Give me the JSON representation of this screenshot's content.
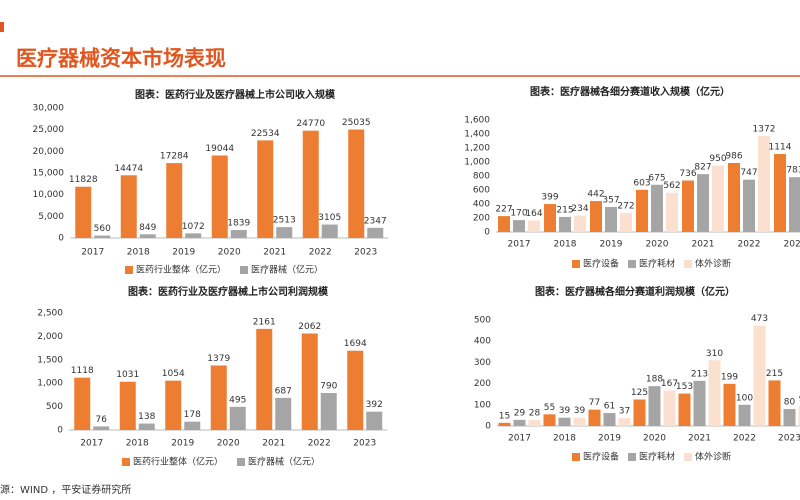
{
  "page": {
    "title": "医疗器械资本市场表现",
    "source": "源：WIND ，平安证券研究所"
  },
  "chart_data": [
    {
      "type": "bar",
      "title": "图表：医药行业及医疗器械上市公司收入规模",
      "categories": [
        "2017",
        "2018",
        "2019",
        "2020",
        "2021",
        "2022",
        "2023"
      ],
      "series": [
        {
          "name": "医药行业整体（亿元）",
          "color": "#ed7d31",
          "values": [
            11828,
            14474,
            17284,
            19044,
            22534,
            24770,
            25035
          ]
        },
        {
          "name": "医疗器械（亿元）",
          "color": "#a5a5a5",
          "values": [
            560,
            849,
            1072,
            1839,
            2513,
            3105,
            2347
          ]
        }
      ],
      "ylim": [
        0,
        30000
      ],
      "yticks": [
        0,
        {
          "value": 5000,
          "label": "5,000"
        },
        {
          "value": 10000,
          "label": "10,000"
        },
        {
          "value": 15000,
          "label": "15,000"
        },
        {
          "value": 20000,
          "label": "20,000"
        },
        {
          "value": 25000,
          "label": "25,000"
        },
        {
          "value": 30000,
          "label": "30,000"
        }
      ]
    },
    {
      "type": "bar",
      "title": "图表：医疗器械各细分赛道收入规模（亿元）",
      "categories": [
        "2017",
        "2018",
        "2019",
        "2020",
        "2021",
        "2022",
        "2023"
      ],
      "series": [
        {
          "name": "医疗设备",
          "color": "#ed7d31",
          "values": [
            227,
            399,
            442,
            603,
            736,
            986,
            1114
          ]
        },
        {
          "name": "医疗耗材",
          "color": "#a5a5a5",
          "values": [
            170,
            215,
            357,
            675,
            827,
            747,
            783
          ]
        },
        {
          "name": "体外诊断",
          "color": "#fbe0cf",
          "values": [
            164,
            234,
            272,
            562,
            950,
            1372,
            null
          ]
        }
      ],
      "ylim": [
        0,
        1600
      ],
      "yticks": [
        0,
        200,
        400,
        600,
        800,
        {
          "value": 1000,
          "label": "1,000"
        },
        {
          "value": 1200,
          "label": "1,200"
        },
        {
          "value": 1400,
          "label": "1,400"
        },
        {
          "value": 1600,
          "label": "1,600"
        }
      ]
    },
    {
      "type": "bar",
      "title": "图表：医药行业及医疗器械上市公司利润规模",
      "categories": [
        "2017",
        "2018",
        "2019",
        "2020",
        "2021",
        "2022",
        "2023"
      ],
      "series": [
        {
          "name": "医药行业整体（亿元）",
          "color": "#ed7d31",
          "values": [
            1118,
            1031,
            1054,
            1379,
            2161,
            2062,
            1694
          ]
        },
        {
          "name": "医疗器械（亿元）",
          "color": "#a5a5a5",
          "values": [
            76,
            138,
            178,
            495,
            687,
            790,
            392
          ]
        }
      ],
      "ylim": [
        0,
        2500
      ],
      "yticks": [
        0,
        500,
        {
          "value": 1000,
          "label": "1,000"
        },
        {
          "value": 1500,
          "label": "1,500"
        },
        {
          "value": 2000,
          "label": "2,000"
        },
        {
          "value": 2500,
          "label": "2,500"
        }
      ]
    },
    {
      "type": "bar",
      "title": "图表：医疗器械各细分赛道利润规模（亿元）",
      "categories": [
        "2017",
        "2018",
        "2019",
        "2020",
        "2021",
        "2022",
        "2023"
      ],
      "series": [
        {
          "name": "医疗设备",
          "color": "#ed7d31",
          "values": [
            15,
            55,
            77,
            125,
            153,
            199,
            215
          ]
        },
        {
          "name": "医疗耗材",
          "color": "#a5a5a5",
          "values": [
            29,
            39,
            61,
            188,
            213,
            100,
            80
          ]
        },
        {
          "name": "体外诊断",
          "color": "#fbe0cf",
          "values": [
            28,
            39,
            37,
            167,
            310,
            473,
            95
          ]
        }
      ],
      "ylim": [
        0,
        500
      ],
      "yticks": [
        0,
        100,
        200,
        300,
        400,
        500
      ]
    }
  ]
}
